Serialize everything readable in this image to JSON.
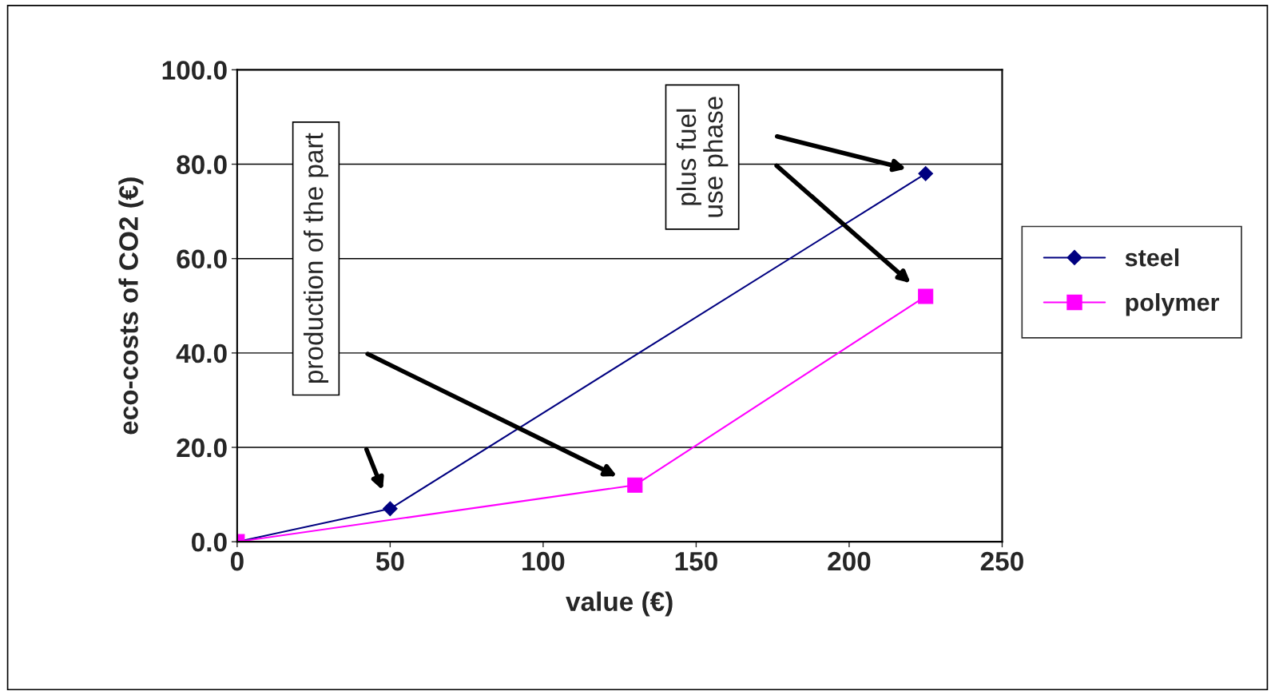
{
  "chart_data": {
    "type": "line",
    "xlabel": "value (€)",
    "ylabel": "eco-costs of CO2 (€)",
    "series": [
      {
        "name": "steel",
        "color": "#000080",
        "marker": "diamond",
        "x": [
          0,
          50,
          225
        ],
        "values": [
          0,
          7,
          78
        ]
      },
      {
        "name": "polymer",
        "color": "#ff00ff",
        "marker": "square",
        "x": [
          0,
          130,
          225
        ],
        "values": [
          0,
          12,
          52
        ]
      }
    ],
    "xlim": [
      0,
      250
    ],
    "xticks": [
      0,
      50,
      100,
      150,
      200,
      250
    ],
    "ylim": [
      0,
      100
    ],
    "yticks": [
      {
        "value": 0,
        "label": "0.0"
      },
      {
        "value": 20,
        "label": "20.0"
      },
      {
        "value": 40,
        "label": "40.0"
      },
      {
        "value": 60,
        "label": "60.0"
      },
      {
        "value": 80,
        "label": "80.0"
      },
      {
        "value": 100,
        "label": "100.0"
      }
    ],
    "grid": "y",
    "legend": "right",
    "line_style": "solid",
    "annotations": [
      "production of the part",
      "plus fuel\nuse phase"
    ]
  }
}
